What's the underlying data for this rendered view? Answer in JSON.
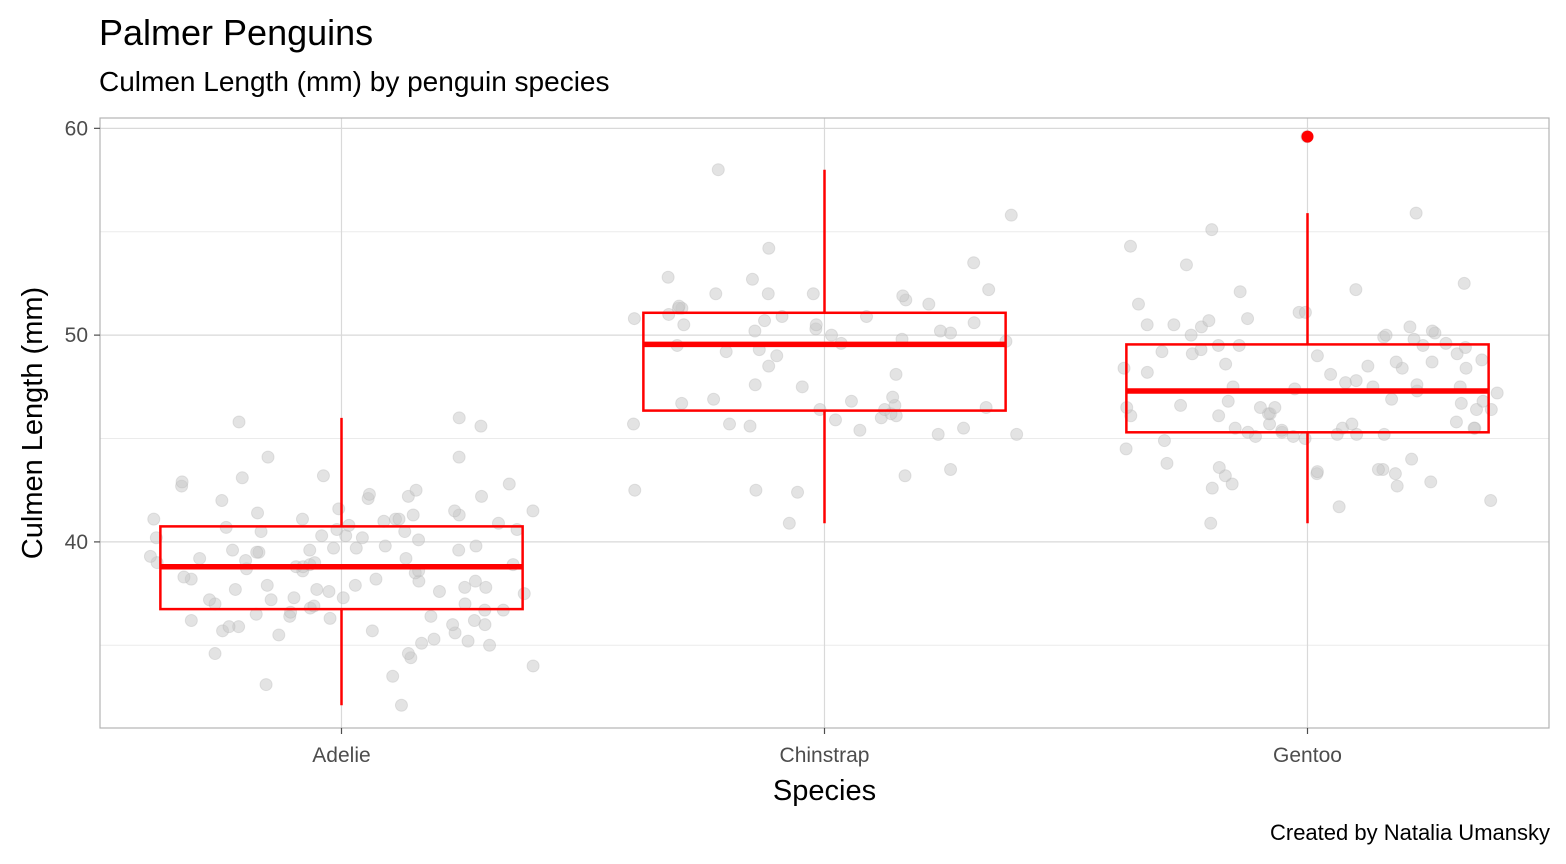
{
  "chart_data": {
    "type": "box",
    "title": "Palmer Penguins",
    "subtitle": "Culmen Length (mm) by penguin species",
    "caption": "Created by Natalia Umansky",
    "xlabel": "Species",
    "ylabel": "Culmen Length (mm)",
    "ylim": [
      31,
      60.5
    ],
    "y_ticks": [
      40,
      50,
      60
    ],
    "grid": true,
    "categories": [
      "Adelie",
      "Chinstrap",
      "Gentoo"
    ],
    "boxes": [
      {
        "category": "Adelie",
        "min": 32.1,
        "q1": 36.75,
        "median": 38.8,
        "q3": 40.75,
        "max": 46.0,
        "outliers": []
      },
      {
        "category": "Chinstrap",
        "min": 40.9,
        "q1": 46.35,
        "median": 49.55,
        "q3": 51.08,
        "max": 58.0,
        "outliers": []
      },
      {
        "category": "Gentoo",
        "min": 40.9,
        "q1": 45.3,
        "median": 47.3,
        "q3": 49.55,
        "max": 55.9,
        "outliers": [
          59.6
        ]
      }
    ],
    "jitter_points": {
      "Adelie": [
        32.1,
        33.1,
        33.5,
        34.0,
        34.4,
        34.6,
        34.6,
        35.0,
        35.1,
        35.2,
        35.3,
        35.5,
        35.6,
        35.7,
        35.7,
        35.9,
        35.9,
        36.0,
        36.0,
        36.2,
        36.2,
        36.3,
        36.4,
        36.4,
        36.5,
        36.6,
        36.7,
        36.7,
        36.8,
        36.9,
        37.0,
        37.0,
        37.2,
        37.2,
        37.3,
        37.3,
        37.5,
        37.6,
        37.6,
        37.7,
        37.7,
        37.8,
        37.8,
        37.9,
        37.9,
        38.1,
        38.1,
        38.2,
        38.2,
        38.3,
        38.5,
        38.6,
        38.6,
        38.7,
        38.8,
        38.8,
        38.9,
        38.9,
        39.0,
        39.0,
        39.1,
        39.2,
        39.2,
        39.3,
        39.5,
        39.5,
        39.6,
        39.6,
        39.6,
        39.7,
        39.7,
        39.8,
        39.8,
        40.1,
        40.2,
        40.2,
        40.3,
        40.3,
        40.5,
        40.5,
        40.6,
        40.6,
        40.7,
        40.8,
        40.9,
        41.0,
        41.1,
        41.1,
        41.1,
        41.1,
        41.3,
        41.3,
        41.4,
        41.5,
        41.5,
        41.6,
        42.0,
        42.1,
        42.2,
        42.2,
        42.3,
        42.5,
        42.7,
        42.8,
        42.9,
        43.1,
        43.2,
        44.1,
        44.1,
        45.6,
        45.8,
        46.0
      ],
      "Chinstrap": [
        40.9,
        42.4,
        42.5,
        42.5,
        43.2,
        43.5,
        45.2,
        45.2,
        45.4,
        45.5,
        45.6,
        45.7,
        45.7,
        45.9,
        46.0,
        46.1,
        46.2,
        46.4,
        46.4,
        46.5,
        46.6,
        46.7,
        46.8,
        46.9,
        47.0,
        47.5,
        47.6,
        48.1,
        48.5,
        49.0,
        49.2,
        49.3,
        49.5,
        49.6,
        49.7,
        49.8,
        50.0,
        50.1,
        50.2,
        50.2,
        50.3,
        50.5,
        50.5,
        50.6,
        50.7,
        50.8,
        50.9,
        50.9,
        51.0,
        51.3,
        51.3,
        51.4,
        51.5,
        51.7,
        51.9,
        52.0,
        52.0,
        52.0,
        52.2,
        52.7,
        52.8,
        53.5,
        54.2,
        55.8,
        58.0
      ],
      "Gentoo": [
        40.9,
        41.7,
        42.0,
        42.6,
        42.7,
        42.8,
        42.9,
        43.2,
        43.3,
        43.3,
        43.4,
        43.5,
        43.5,
        43.6,
        43.8,
        44.0,
        44.5,
        44.9,
        45.0,
        45.1,
        45.1,
        45.2,
        45.2,
        45.2,
        45.3,
        45.3,
        45.4,
        45.5,
        45.5,
        45.5,
        45.5,
        45.7,
        45.7,
        45.8,
        46.1,
        46.1,
        46.2,
        46.2,
        46.4,
        46.4,
        46.5,
        46.5,
        46.5,
        46.6,
        46.7,
        46.8,
        46.8,
        46.9,
        47.2,
        47.3,
        47.4,
        47.5,
        47.5,
        47.5,
        47.6,
        47.7,
        47.8,
        48.1,
        48.2,
        48.4,
        48.4,
        48.4,
        48.5,
        48.6,
        48.7,
        48.7,
        48.8,
        49.0,
        49.1,
        49.1,
        49.2,
        49.3,
        49.4,
        49.5,
        49.5,
        49.5,
        49.6,
        49.8,
        49.9,
        50.0,
        50.0,
        50.1,
        50.2,
        50.4,
        50.4,
        50.5,
        50.5,
        50.7,
        50.8,
        51.1,
        51.1,
        51.5,
        52.1,
        52.2,
        52.5,
        53.4,
        54.3,
        55.1,
        55.9,
        59.6
      ]
    }
  },
  "style": {
    "box_color": "#ff0000",
    "point_color": "#c8c8c8",
    "outlier_color": "#ff0000",
    "grid_major": "#d9d9d9",
    "grid_minor": "#ebebeb",
    "panel_border": "#b3b3b3"
  }
}
